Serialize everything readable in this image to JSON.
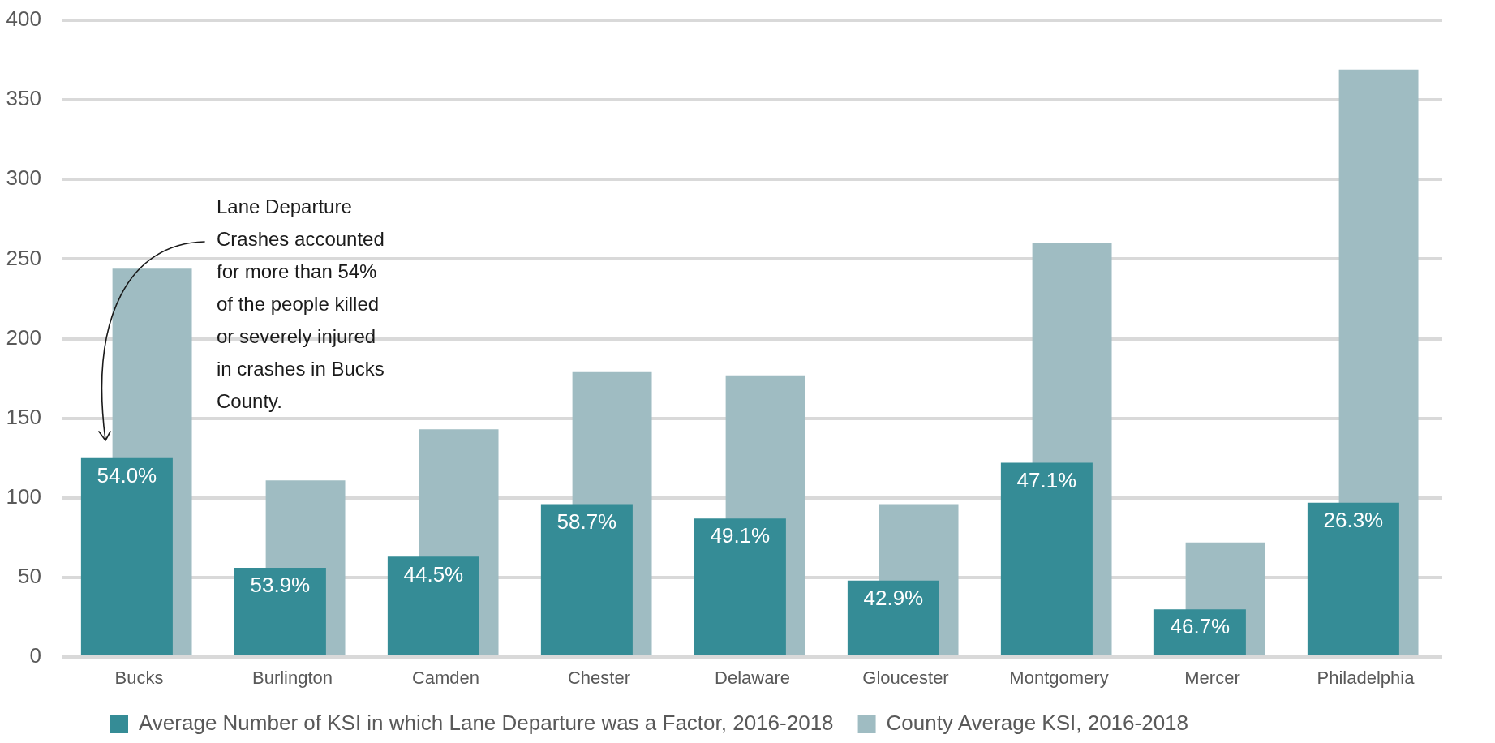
{
  "chart_data": {
    "type": "bar",
    "categories": [
      "Bucks",
      "Burlington",
      "Camden",
      "Chester",
      "Delaware",
      "Gloucester",
      "Montgomery",
      "Mercer",
      "Philadelphia"
    ],
    "series": [
      {
        "name": "Average Number of KSI in which Lane Departure was a Factor, 2016-2018",
        "color": "#358c96",
        "values": [
          125,
          56,
          63,
          96,
          87,
          48,
          122,
          30,
          97
        ]
      },
      {
        "name": "County Average KSI, 2016-2018",
        "color": "#9fbcc2",
        "values": [
          244,
          111,
          143,
          179,
          177,
          96,
          260,
          72,
          369
        ]
      }
    ],
    "ylim": [
      0,
      400
    ],
    "yticks": [
      0,
      50,
      100,
      150,
      200,
      250,
      300,
      350,
      400
    ],
    "grid": "y",
    "legend": "bottom",
    "annotations": [
      "Lane Departure Crashes accounted for more than 54% of the people killed or severely injured in crashes in Bucks County.",
      {
        "text": "54.0%",
        "x": "Bucks",
        "y": 125
      },
      {
        "text": "53.9%",
        "x": "Burlington",
        "y": 56
      },
      {
        "text": "44.5%",
        "x": "Camden",
        "y": 63
      },
      {
        "text": "58.7%",
        "x": "Chester",
        "y": 96
      },
      {
        "text": "49.1%",
        "x": "Delaware",
        "y": 87
      },
      {
        "text": "42.9%",
        "x": "Gloucester",
        "y": 48
      },
      {
        "text": "47.1%",
        "x": "Montgomery",
        "y": 122
      },
      {
        "text": "46.7%",
        "x": "Mercer",
        "y": 30
      },
      {
        "text": "26.3%",
        "x": "Philadelphia",
        "y": 97
      }
    ]
  }
}
